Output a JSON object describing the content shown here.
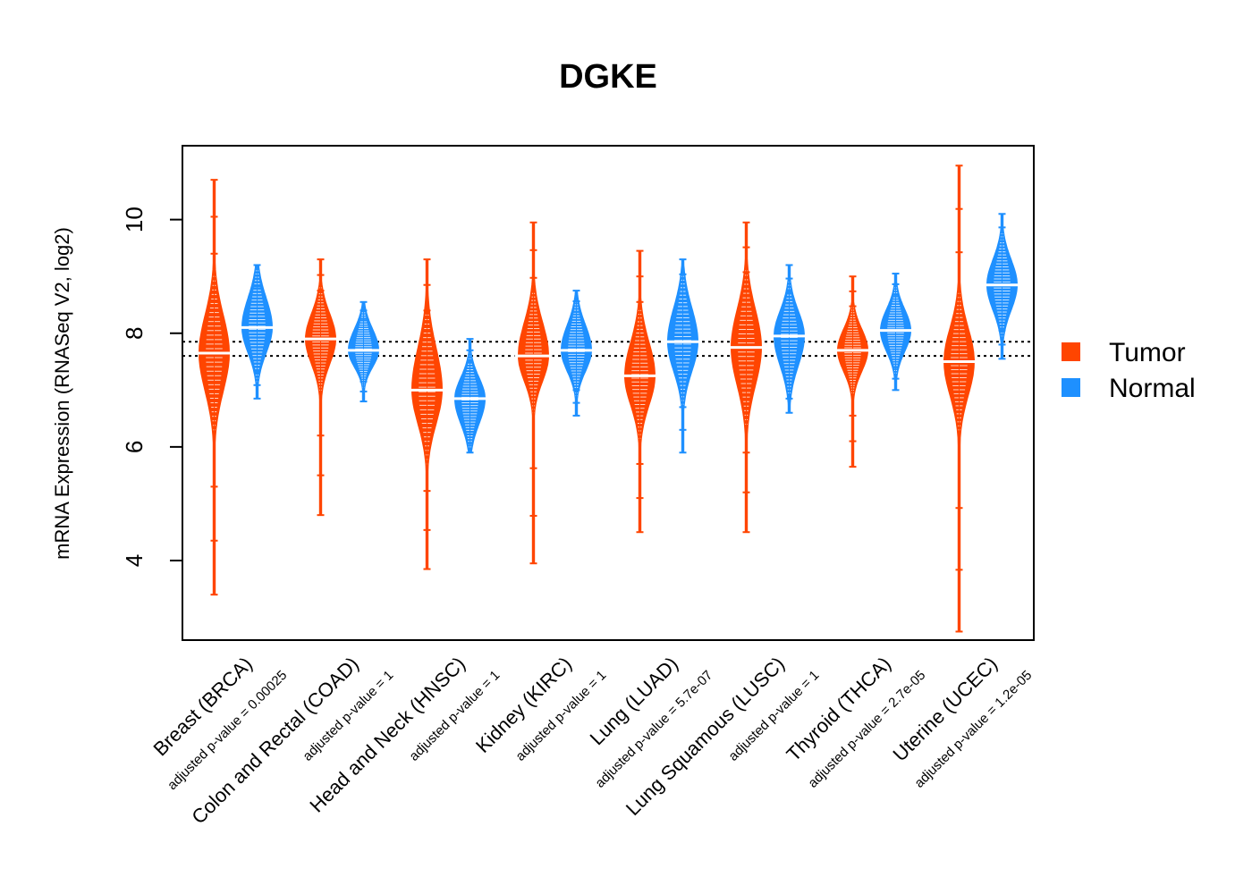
{
  "chart_data": {
    "type": "beanplot",
    "title": "DGKE",
    "xlabel": "",
    "ylabel": "mRNA Expression (RNASeq V2, log2)",
    "ylim": [
      2.6,
      11.3
    ],
    "yticks": [
      4,
      6,
      8,
      10
    ],
    "reference_lines": [
      7.6,
      7.85
    ],
    "legend": {
      "placement": "right",
      "entries": [
        {
          "label": "Tumor",
          "color": "#FF4500"
        },
        {
          "label": "Normal",
          "color": "#1E90FF"
        }
      ]
    },
    "categories": [
      {
        "name": "Breast (BRCA)",
        "pvalue": "adjusted p-value = 0.00025",
        "tumor": {
          "min": 3.4,
          "q1": 7.2,
          "median": 7.65,
          "q3": 8.1,
          "max": 10.7
        },
        "normal": {
          "min": 6.85,
          "q1": 7.8,
          "median": 8.1,
          "q3": 8.45,
          "max": 9.2
        }
      },
      {
        "name": "Colon and Rectal (COAD)",
        "pvalue": "adjusted p-value = 1",
        "tumor": {
          "min": 4.8,
          "q1": 7.6,
          "median": 7.9,
          "q3": 8.2,
          "max": 9.3
        },
        "normal": {
          "min": 6.8,
          "q1": 7.5,
          "median": 7.7,
          "q3": 7.95,
          "max": 8.55
        }
      },
      {
        "name": "Head and Neck (HNSC)",
        "pvalue": "adjusted p-value = 1",
        "tumor": {
          "min": 3.85,
          "q1": 6.6,
          "median": 7.0,
          "q3": 7.5,
          "max": 9.3
        },
        "normal": {
          "min": 5.9,
          "q1": 6.55,
          "median": 6.85,
          "q3": 7.1,
          "max": 7.9
        }
      },
      {
        "name": "Kidney (KIRC)",
        "pvalue": "adjusted p-value = 1",
        "tumor": {
          "min": 3.95,
          "q1": 7.3,
          "median": 7.6,
          "q3": 8.0,
          "max": 9.95
        },
        "normal": {
          "min": 6.55,
          "q1": 7.45,
          "median": 7.7,
          "q3": 8.0,
          "max": 8.75
        }
      },
      {
        "name": "Lung (LUAD)",
        "pvalue": "adjusted p-value = 5.7e-07",
        "tumor": {
          "min": 4.5,
          "q1": 6.9,
          "median": 7.25,
          "q3": 7.65,
          "max": 9.45
        },
        "normal": {
          "min": 5.9,
          "q1": 7.5,
          "median": 7.85,
          "q3": 8.25,
          "max": 9.3
        }
      },
      {
        "name": "Lung Squamous (LUSC)",
        "pvalue": "adjusted p-value = 1",
        "tumor": {
          "min": 4.5,
          "q1": 7.3,
          "median": 7.75,
          "q3": 8.2,
          "max": 9.95
        },
        "normal": {
          "min": 6.6,
          "q1": 7.6,
          "median": 7.95,
          "q3": 8.25,
          "max": 9.2
        }
      },
      {
        "name": "Thyroid (THCA)",
        "pvalue": "adjusted p-value = 2.7e-05",
        "tumor": {
          "min": 5.65,
          "q1": 7.45,
          "median": 7.7,
          "q3": 7.95,
          "max": 9.0
        },
        "normal": {
          "min": 7.0,
          "q1": 7.8,
          "median": 8.05,
          "q3": 8.3,
          "max": 9.05
        }
      },
      {
        "name": "Uterine (UCEC)",
        "pvalue": "adjusted p-value = 1.2e-05",
        "tumor": {
          "min": 2.75,
          "q1": 7.1,
          "median": 7.5,
          "q3": 7.9,
          "max": 10.95
        },
        "normal": {
          "min": 7.55,
          "q1": 8.55,
          "median": 8.85,
          "q3": 9.15,
          "max": 10.1
        }
      }
    ]
  }
}
